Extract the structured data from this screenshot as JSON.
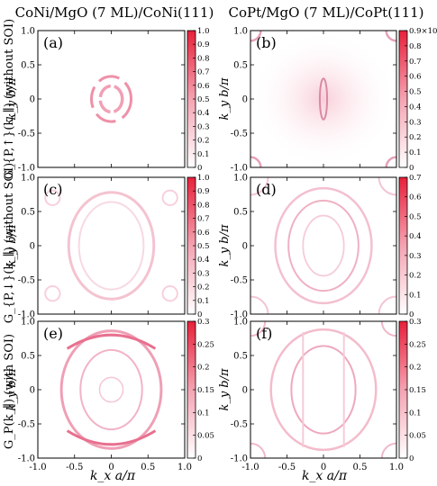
{
  "figure": {
    "column_titles": [
      "CoNi/MgO (7 ML)/CoNi(111)",
      "CoPt/MgO (7 ML)/CoPt(111)"
    ],
    "row_labels": [
      "G_{P,↑}(k_∥) (without SOI)",
      "G_{P,↓}(k_∥) (without SOI)",
      "G_P(k_∥) (with SOI)"
    ],
    "x_axis_label": "k_x a/π",
    "y_axis_label": "k_y b/π"
  },
  "chart_data": [
    {
      "type": "heatmap",
      "panel": "(a)",
      "xlim": [
        -1,
        1
      ],
      "ylim": [
        -1,
        1
      ],
      "xticks": [
        "-1.0",
        "-0.5",
        "0",
        "0.5",
        "1.0"
      ],
      "yticks": [
        "1.0",
        "0.5",
        "0",
        "-0.5",
        "-1.0"
      ],
      "colorbar_ticks": [
        "1.0",
        "0.9",
        "0.8",
        "0.7",
        "0.6",
        "0.5",
        "0.4",
        "0.3",
        "0.2",
        "0.1",
        "0"
      ],
      "colorbar_range": [
        0,
        1.0
      ],
      "colormap": [
        "#ffffff",
        "#e8203a"
      ],
      "pattern": "small elliptical ring pair near origin"
    },
    {
      "type": "heatmap",
      "panel": "(b)",
      "xlim": [
        -1,
        1
      ],
      "ylim": [
        -1,
        1
      ],
      "xticks": [
        "-1.0",
        "-0.5",
        "0",
        "0.5",
        "1.0"
      ],
      "yticks": [
        "1.0",
        "0.5",
        "0",
        "-0.5",
        "-1.0"
      ],
      "colorbar_ticks": [
        "0.9×10⁻²",
        "0.8",
        "0.7",
        "0.6",
        "0.5",
        "0.4",
        "0.3",
        "0.2",
        "0.1",
        "0"
      ],
      "colorbar_range": [
        0,
        0.009
      ],
      "colormap": [
        "#ffffff",
        "#e8203a"
      ],
      "pattern": "narrow vertical spindle at origin, faint corner arcs"
    },
    {
      "type": "heatmap",
      "panel": "(c)",
      "xlim": [
        -1,
        1
      ],
      "ylim": [
        -1,
        1
      ],
      "xticks": [
        "-1.0",
        "-0.5",
        "0",
        "0.5",
        "1.0"
      ],
      "yticks": [
        "1.0",
        "0.5",
        "0",
        "-0.5",
        "-1.0"
      ],
      "colorbar_ticks": [
        "1.0",
        "0.9",
        "0.8",
        "0.7",
        "0.6",
        "0.5",
        "0.4",
        "0.3",
        "0.2",
        "0.1",
        "0"
      ],
      "colorbar_range": [
        0,
        1.0
      ],
      "colormap": [
        "#ffffff",
        "#e8203a"
      ],
      "pattern": "large faint ellipse"
    },
    {
      "type": "heatmap",
      "panel": "(d)",
      "xlim": [
        -1,
        1
      ],
      "ylim": [
        -1,
        1
      ],
      "xticks": [
        "-1.0",
        "-0.5",
        "0",
        "0.5",
        "1.0"
      ],
      "yticks": [
        "1.0",
        "0.5",
        "0",
        "-0.5",
        "-1.0"
      ],
      "colorbar_ticks": [
        "0.7",
        "0.6",
        "0.5",
        "0.4",
        "0.3",
        "0.2",
        "0.1",
        "0"
      ],
      "colorbar_range": [
        0,
        0.7
      ],
      "colormap": [
        "#ffffff",
        "#e8203a"
      ],
      "pattern": "nested ellipses with corner features"
    },
    {
      "type": "heatmap",
      "panel": "(e)",
      "xlim": [
        -1,
        1
      ],
      "ylim": [
        -1,
        1
      ],
      "xticks": [
        "-1.0",
        "-0.5",
        "0",
        "0.5",
        "1.0"
      ],
      "yticks": [
        "1.0",
        "0.5",
        "0",
        "-0.5",
        "-1.0"
      ],
      "colorbar_ticks": [
        "0.3",
        "0.25",
        "0.2",
        "0.15",
        "0.1",
        "0.05",
        "0"
      ],
      "colorbar_range": [
        0,
        0.3
      ],
      "colormap": [
        "#ffffff",
        "#e8203a"
      ],
      "pattern": "large ellipse with inner ellipse and bright top/bottom arcs"
    },
    {
      "type": "heatmap",
      "panel": "(f)",
      "xlim": [
        -1,
        1
      ],
      "ylim": [
        -1,
        1
      ],
      "xticks": [
        "-1.0",
        "-0.5",
        "0",
        "0.5",
        "1.0"
      ],
      "yticks": [
        "1.0",
        "0.5",
        "0",
        "-0.5",
        "-1.0"
      ],
      "colorbar_ticks": [
        "0.3",
        "0.25",
        "0.2",
        "0.15",
        "0.1",
        "0.05",
        "0"
      ],
      "colorbar_range": [
        0,
        0.3
      ],
      "colormap": [
        "#ffffff",
        "#e8203a"
      ],
      "pattern": "nested ellipses with vertical streaks and corner arcs"
    }
  ]
}
